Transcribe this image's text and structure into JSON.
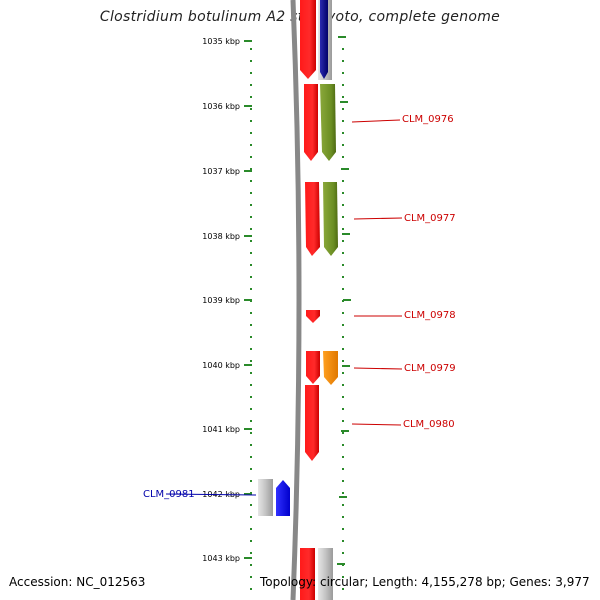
{
  "map": {
    "title": "Clostridium botulinum A2 str. Kyoto, complete genome",
    "accession_text": "Accession: NC_012563",
    "summary_text": "Topology: circular; Length: 4,155,278 bp; Genes: 3,977"
  },
  "ticks": [
    {
      "label": "1035 kbp"
    },
    {
      "label": "1036 kbp"
    },
    {
      "label": "1037 kbp"
    },
    {
      "label": "1038 kbp"
    },
    {
      "label": "1039 kbp"
    },
    {
      "label": "1040 kbp"
    },
    {
      "label": "1041 kbp"
    },
    {
      "label": "1042 kbp"
    },
    {
      "label": "1043 kbp"
    }
  ],
  "genes": [
    {
      "label": "CLM_0976",
      "color": "#cc0000"
    },
    {
      "label": "CLM_0977",
      "color": "#cc0000"
    },
    {
      "label": "CLM_0978",
      "color": "#cc0000"
    },
    {
      "label": "CLM_0979",
      "color": "#cc0000"
    },
    {
      "label": "CLM_0980",
      "color": "#cc0000"
    },
    {
      "label": "CLM_0981",
      "color": "#0000aa"
    }
  ],
  "colors": {
    "forward_strand": "#ff0000",
    "reverse_strand": "#0000ff",
    "backbone": "#888888",
    "ticks": "#2a8a2a",
    "cog_green": "#6b8e23",
    "cog_navy": "#000080",
    "cog_orange": "#ff8c00",
    "cog_gray": "#b0b0b0"
  }
}
